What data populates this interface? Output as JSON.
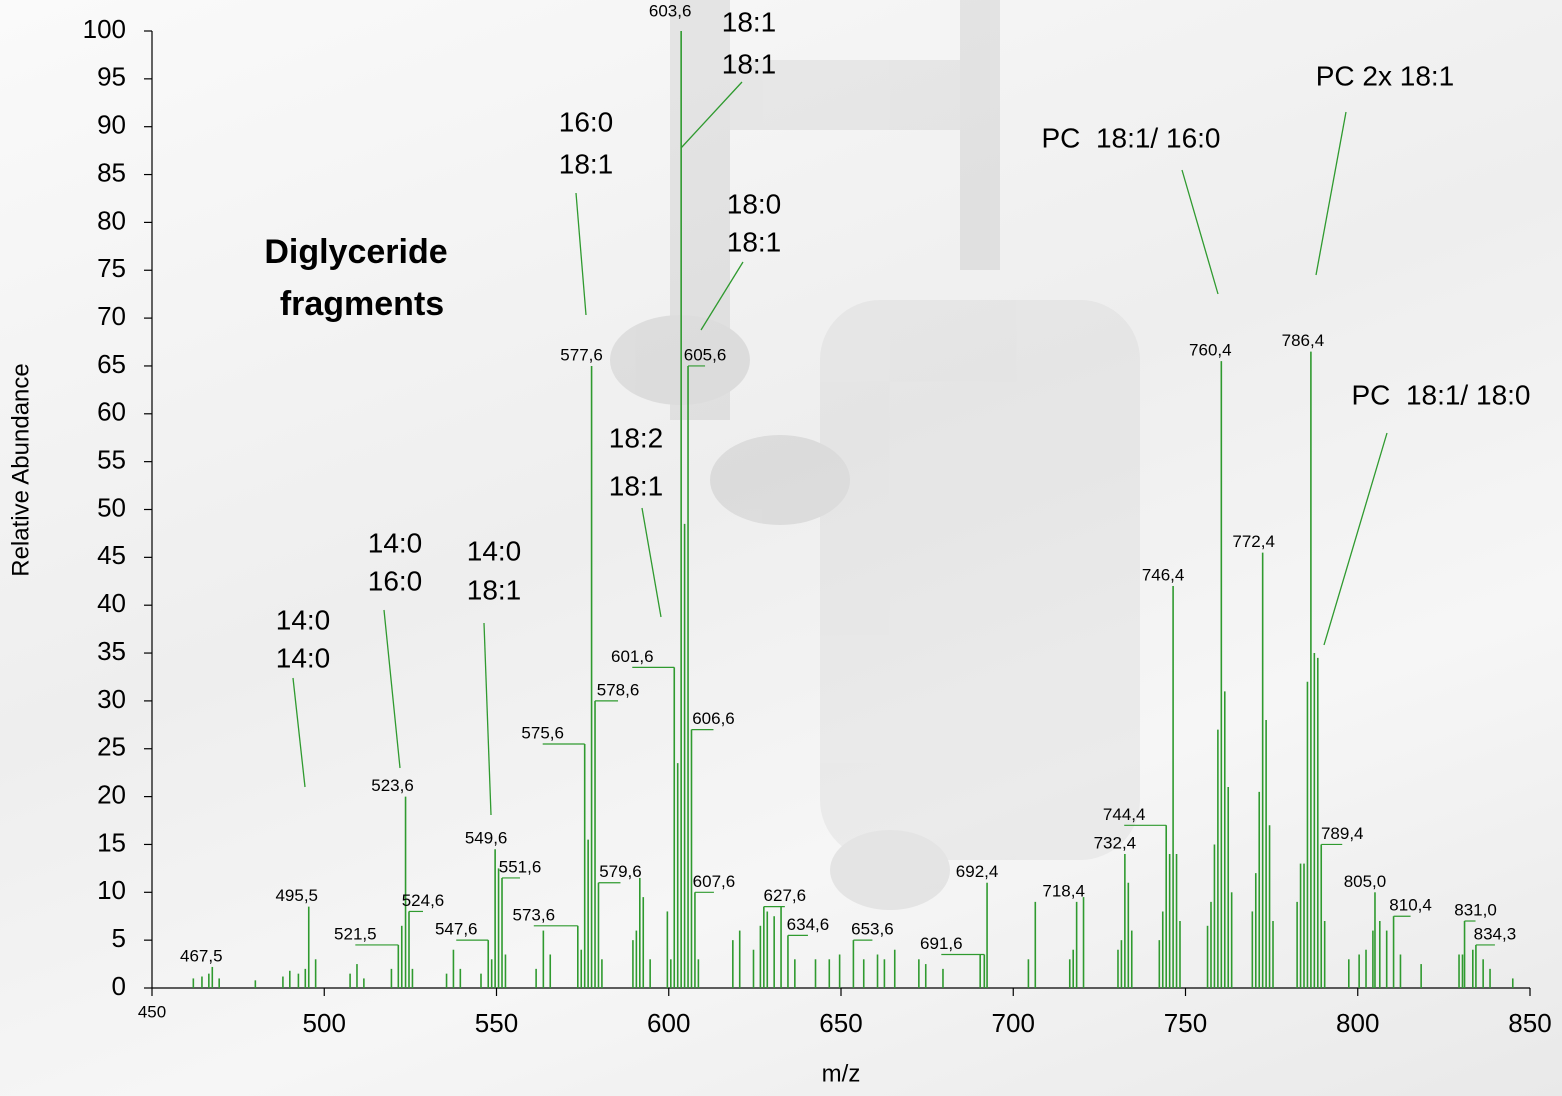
{
  "chart_data": {
    "type": "bar",
    "x_label": "m/z",
    "y_label": "Relative Abundance",
    "xlim": [
      450,
      850
    ],
    "xticks": [
      450,
      500,
      550,
      600,
      650,
      700,
      750,
      800,
      850
    ],
    "ylim": [
      0,
      100
    ],
    "yticks": [
      0,
      5,
      10,
      15,
      20,
      25,
      30,
      35,
      40,
      45,
      50,
      55,
      60,
      65,
      70,
      75,
      80,
      85,
      90,
      95,
      100
    ],
    "heading": [
      "Diglyceride",
      "fragments"
    ],
    "annotations": [
      {
        "lines": [
          "14:0",
          "14:0"
        ]
      },
      {
        "lines": [
          "14:0",
          "16:0"
        ]
      },
      {
        "lines": [
          "14:0",
          "18:1"
        ]
      },
      {
        "lines": [
          "18:2",
          "18:1"
        ]
      },
      {
        "lines": [
          "16:0",
          "18:1"
        ]
      },
      {
        "lines": [
          "18:1",
          "18:1"
        ]
      },
      {
        "lines": [
          "18:0",
          "18:1"
        ]
      },
      {
        "lines": [
          "PC  18:1/ 16:0"
        ]
      },
      {
        "lines": [
          "PC 2x 18:1"
        ]
      },
      {
        "lines": [
          "PC  18:1/ 18:0"
        ]
      }
    ],
    "series": [
      {
        "color": "#2f9a2f",
        "x": [
          467.5,
          495.5,
          521.5,
          523.6,
          524.6,
          547.6,
          549.6,
          551.6,
          573.6,
          575.6,
          577.6,
          578.6,
          579.6,
          601.6,
          603.6,
          605.6,
          606.6,
          607.6,
          627.6,
          634.6,
          653.6,
          691.6,
          692.4,
          718.4,
          732.4,
          744.4,
          746.4,
          760.4,
          772.4,
          786.4,
          789.4,
          805.0,
          810.4,
          831.0,
          834.3
        ],
        "x_labels": [
          "467,5",
          "495,5",
          "521,5",
          "523,6",
          "524,6",
          "547,6",
          "549,6",
          "551,6",
          "573,6",
          "575,6",
          "577,6",
          "578,6",
          "579,6",
          "601,6",
          "603,6",
          "605,6",
          "606,6",
          "607,6",
          "627,6",
          "634,6",
          "653,6",
          "691,6",
          "692,4",
          "718,4",
          "732,4",
          "744,4",
          "746,4",
          "760,4",
          "772,4",
          "786,4",
          "789,4",
          "805,0",
          "810,4",
          "831,0",
          "834,3"
        ],
        "values": [
          2.2,
          8.5,
          4.5,
          20,
          8,
          5,
          14.5,
          11.5,
          6.5,
          25.5,
          65,
          30,
          11,
          33.5,
          100,
          65,
          27,
          10,
          8.5,
          5.5,
          5,
          3.5,
          11,
          9,
          14,
          17,
          42,
          65.5,
          45.5,
          66.5,
          15,
          10,
          7.5,
          7,
          4.5
        ]
      },
      {
        "color": "#2f9a2f",
        "x": [
          462,
          464.5,
          466.5,
          469.5,
          480,
          488,
          490,
          492.5,
          494.5,
          497.5,
          507.5,
          509.5,
          511.5,
          519.5,
          522.5,
          525.6,
          535.5,
          537.5,
          539.5,
          545.5,
          548.6,
          550.6,
          552.6,
          561.5,
          563.6,
          565.6,
          574.6,
          576.6,
          580.6,
          589.6,
          590.6,
          591.6,
          592.6,
          594.6,
          599.6,
          600.6,
          602.6,
          604.6,
          608.6,
          618.6,
          620.6,
          624.6,
          626.6,
          628.6,
          630.6,
          632.6,
          636.6,
          642.6,
          646.6,
          649.6,
          656.6,
          660.6,
          662.6,
          665.6,
          672.6,
          674.6,
          679.6,
          690.4,
          704.4,
          706.4,
          716.4,
          717.4,
          720.4,
          730.4,
          731.4,
          733.4,
          734.4,
          742.4,
          743.4,
          745.4,
          747.4,
          748.4,
          756.4,
          757.4,
          758.4,
          759.4,
          761.4,
          762.4,
          763.4,
          769.4,
          770.4,
          771.4,
          773.4,
          774.4,
          775.4,
          782.4,
          783.4,
          784.4,
          785.4,
          787.4,
          788.4,
          790.4,
          797.4,
          800.4,
          802.4,
          804.4,
          806.4,
          808.4,
          812.4,
          818.4,
          829.4,
          830.4,
          833.4,
          836.4,
          838.4,
          845
        ],
        "values": [
          1,
          1.2,
          1.5,
          1,
          0.8,
          1.2,
          1.8,
          1.5,
          2,
          3,
          1.5,
          2.5,
          1,
          2,
          6.5,
          2,
          1.5,
          4,
          2,
          1.5,
          3,
          12.5,
          3.5,
          2,
          6,
          3.5,
          4,
          15.5,
          3,
          5,
          6,
          11.5,
          9.5,
          3,
          8,
          3,
          23.5,
          48.5,
          3,
          5,
          6,
          4,
          6.5,
          8,
          7.5,
          8.5,
          3,
          3,
          3,
          3.5,
          3,
          3.5,
          3,
          4,
          3,
          2.5,
          2,
          3.5,
          3,
          9,
          3,
          4,
          9.5,
          4,
          5,
          11,
          6,
          5,
          8,
          14,
          14,
          7,
          6.5,
          9,
          15,
          27,
          31,
          21,
          10,
          8,
          12,
          20.5,
          28,
          17,
          7,
          9,
          13,
          13,
          32,
          35,
          34.5,
          7,
          3,
          3.5,
          4,
          6,
          7,
          6,
          3.5,
          2.5,
          3.5,
          3.5,
          4,
          3,
          2,
          1
        ]
      }
    ]
  }
}
